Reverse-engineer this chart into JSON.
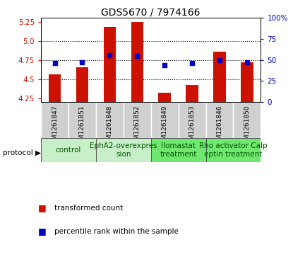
{
  "title": "GDS5670 / 7974166",
  "samples": [
    "GSM1261847",
    "GSM1261851",
    "GSM1261848",
    "GSM1261852",
    "GSM1261849",
    "GSM1261853",
    "GSM1261846",
    "GSM1261850"
  ],
  "red_values": [
    4.56,
    4.65,
    5.18,
    5.25,
    4.32,
    4.42,
    4.86,
    4.72
  ],
  "blue_values": [
    46,
    47,
    56,
    55,
    44,
    46,
    50,
    47
  ],
  "protocols": [
    {
      "label": "control",
      "cols": [
        0,
        1
      ],
      "color": "#c8f0c8"
    },
    {
      "label": "EphA2-overexpres\nsion",
      "cols": [
        2,
        3
      ],
      "color": "#c8f0c8"
    },
    {
      "label": "Ilomastat\ntreatment",
      "cols": [
        4,
        5
      ],
      "color": "#70e870"
    },
    {
      "label": "Rho activator Calp\neptin treatment",
      "cols": [
        6,
        7
      ],
      "color": "#70e870"
    }
  ],
  "ylim_left": [
    4.2,
    5.3
  ],
  "ylim_right": [
    0,
    100
  ],
  "yticks_left": [
    4.25,
    4.5,
    4.75,
    5.0,
    5.25
  ],
  "yticks_right": [
    0,
    25,
    50,
    75,
    100
  ],
  "grid_values": [
    4.5,
    4.75,
    5.0
  ],
  "bar_color": "#cc1100",
  "dot_color": "#0000cc",
  "bar_bottom": 4.2,
  "bar_width": 0.45,
  "title_fontsize": 10,
  "tick_fontsize": 7.5,
  "sample_fontsize": 6.5,
  "proto_fontsize": 7.5,
  "legend_fontsize": 7.5
}
